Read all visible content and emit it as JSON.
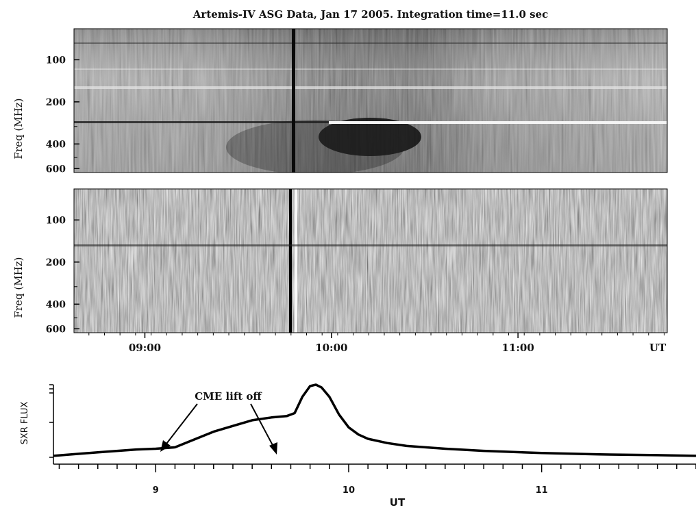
{
  "title": "Artemis-IV ASG Data, Jan 17 2005. Integration time=11.0 sec",
  "chart_data": [
    {
      "type": "heatmap",
      "name": "spectrogram",
      "ylabel": "Freq (MHz)",
      "y_scale": "log",
      "y_ticks": [
        100,
        200,
        400,
        600
      ]
    },
    {
      "type": "heatmap",
      "name": "difference-spectrogram",
      "ylabel": "Freq (MHz)",
      "y_scale": "log",
      "y_ticks": [
        100,
        200,
        400,
        600
      ],
      "x_tick_labels": [
        "09:00",
        "10:00",
        "11:00",
        "UT"
      ]
    },
    {
      "type": "line",
      "name": "SXR flux",
      "ylabel": "SXR FLUX",
      "xlabel": "UT",
      "xlim": [
        8.47,
        11.8
      ],
      "x_ticks": [
        9,
        10,
        11
      ],
      "x": [
        8.47,
        8.7,
        8.9,
        9.0,
        9.1,
        9.2,
        9.3,
        9.4,
        9.5,
        9.6,
        9.68,
        9.72,
        9.76,
        9.8,
        9.83,
        9.86,
        9.9,
        9.95,
        10.0,
        10.05,
        10.1,
        10.2,
        10.3,
        10.5,
        10.7,
        11.0,
        11.3,
        11.6,
        11.8
      ],
      "y": [
        0.02,
        0.07,
        0.11,
        0.12,
        0.14,
        0.25,
        0.36,
        0.44,
        0.52,
        0.56,
        0.58,
        0.62,
        0.85,
        1.0,
        1.02,
        0.98,
        0.85,
        0.6,
        0.42,
        0.32,
        0.26,
        0.2,
        0.16,
        0.12,
        0.09,
        0.06,
        0.04,
        0.03,
        0.02
      ],
      "annotation": "CME lift off"
    }
  ]
}
